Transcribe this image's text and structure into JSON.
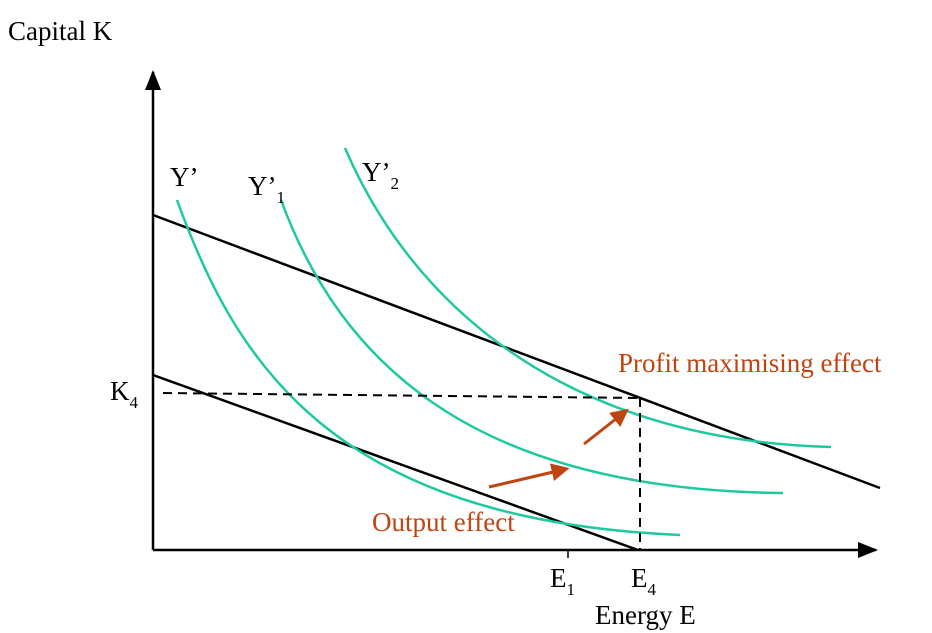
{
  "labels": {
    "y_axis": "Capital K",
    "x_axis": "Energy E",
    "curve1": "Y’",
    "curve2": "Y’",
    "curve2_sub": "1",
    "curve3": "Y’",
    "curve3_sub": "2",
    "k_tick": "K",
    "k_tick_sub": "4",
    "e1_tick": "E",
    "e1_tick_sub": "1",
    "e4_tick": "E",
    "e4_tick_sub": "4",
    "output_effect": "Output effect",
    "profit_effect": "Profit maximising effect"
  },
  "colors": {
    "isoquant": "#1fc9a0",
    "line": "#000000",
    "arrow": "#c0440f",
    "annotation": "#c0440f"
  }
}
